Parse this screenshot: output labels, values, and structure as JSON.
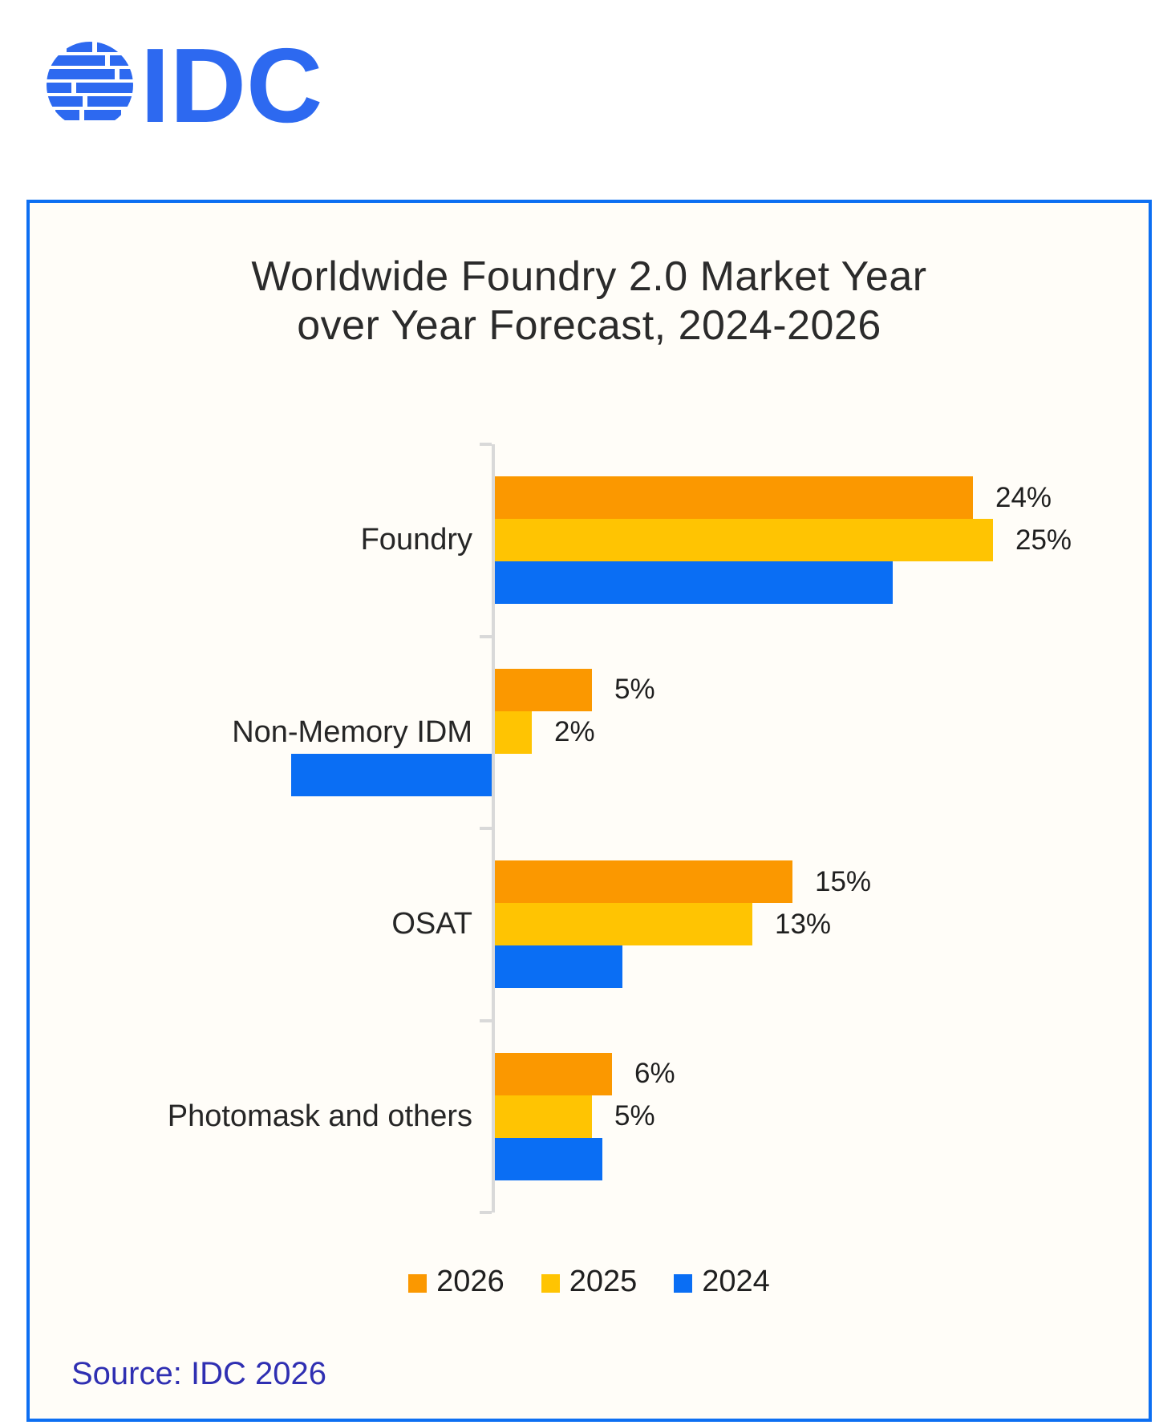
{
  "logo": {
    "text": "IDC",
    "color": "#2D69F0"
  },
  "card": {
    "background": "#FFFDF8",
    "border_color": "#0D6FF2"
  },
  "source": {
    "text": "Source: IDC 2026",
    "color": "#2F2FB2"
  },
  "chart_data": {
    "type": "bar",
    "orientation": "horizontal",
    "title": "Worldwide Foundry 2.0 Market Year over Year Forecast, 2024-2026",
    "categories": [
      "Foundry",
      "Non-Memory IDM",
      "OSAT",
      "Photomask and others"
    ],
    "series": [
      {
        "name": "2026",
        "color": "#FB9800",
        "values": [
          24,
          5,
          15,
          6
        ],
        "labels": [
          "24%",
          "5%",
          "15%",
          "6%"
        ]
      },
      {
        "name": "2025",
        "color": "#FFC402",
        "values": [
          25,
          2,
          13,
          5
        ],
        "labels": [
          "25%",
          "2%",
          "13%",
          "5%"
        ]
      },
      {
        "name": "2024",
        "color": "#0A6EF4",
        "values": [
          20,
          -10,
          6.5,
          5.5
        ],
        "labels": [
          "",
          "",
          "",
          ""
        ]
      }
    ],
    "xlabel": "",
    "ylabel": "",
    "xlim": [
      -10,
      25
    ],
    "grid": false,
    "legend_position": "bottom",
    "axis_color": "#D9D9D9",
    "value_labels": "shown for 2026 and 2025 series only; 2024 bar values estimated from bar lengths"
  }
}
